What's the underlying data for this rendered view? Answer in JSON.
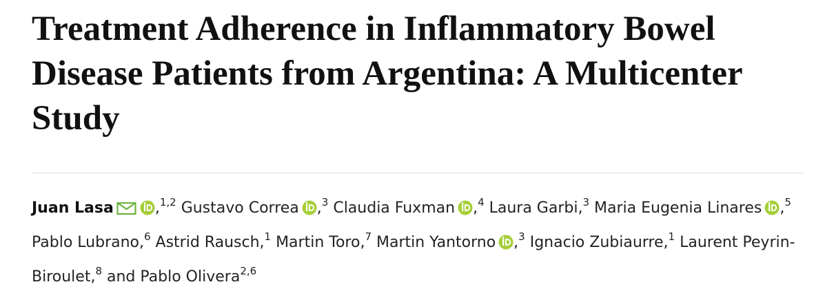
{
  "title": "Treatment Adherence in Inflammatory Bowel Disease Patients from Argentina: A Multicenter Study",
  "separator": ",",
  "connector": "and",
  "authors": [
    {
      "name": "Juan Lasa",
      "email": true,
      "orcid": true,
      "affiliations": "1,2",
      "bold": true
    },
    {
      "name": "Gustavo Correa",
      "orcid": true,
      "affiliations": "3"
    },
    {
      "name": "Claudia Fuxman",
      "orcid": true,
      "affiliations": "4"
    },
    {
      "name": "Laura Garbi",
      "affiliations": "3"
    },
    {
      "name": "Maria Eugenia Linares",
      "orcid": true,
      "affiliations": "5"
    },
    {
      "name": "Pablo Lubrano",
      "affiliations": "6"
    },
    {
      "name": "Astrid Rausch",
      "affiliations": "1"
    },
    {
      "name": "Martin Toro",
      "affiliations": "7"
    },
    {
      "name": "Martin Yantorno",
      "orcid": true,
      "affiliations": "3"
    },
    {
      "name": "Ignacio Zubiaurre",
      "affiliations": "1"
    },
    {
      "name": "Laurent Peyrin-Biroulet",
      "affiliations": "8"
    },
    {
      "name": "Pablo Olivera",
      "affiliations": "2,6"
    }
  ]
}
